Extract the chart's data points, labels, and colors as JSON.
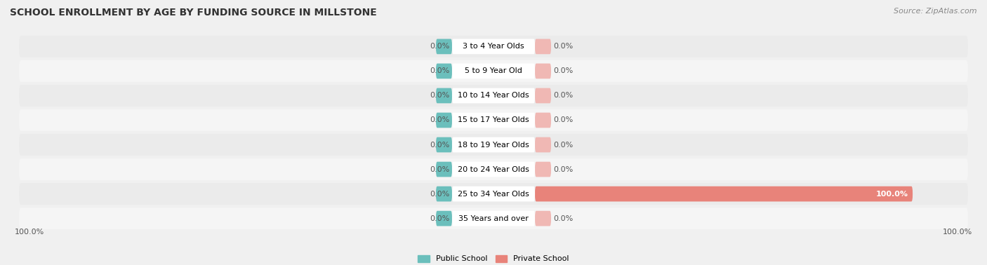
{
  "title": "SCHOOL ENROLLMENT BY AGE BY FUNDING SOURCE IN MILLSTONE",
  "source": "Source: ZipAtlas.com",
  "categories": [
    "3 to 4 Year Olds",
    "5 to 9 Year Old",
    "10 to 14 Year Olds",
    "15 to 17 Year Olds",
    "18 to 19 Year Olds",
    "20 to 24 Year Olds",
    "25 to 34 Year Olds",
    "35 Years and over"
  ],
  "public_values": [
    0.0,
    0.0,
    0.0,
    0.0,
    0.0,
    0.0,
    0.0,
    0.0
  ],
  "private_values": [
    0.0,
    0.0,
    0.0,
    0.0,
    0.0,
    0.0,
    100.0,
    0.0
  ],
  "public_left_labels": [
    "0.0%",
    "0.0%",
    "0.0%",
    "0.0%",
    "0.0%",
    "0.0%",
    "0.0%",
    "0.0%"
  ],
  "private_right_labels": [
    "0.0%",
    "0.0%",
    "0.0%",
    "0.0%",
    "0.0%",
    "0.0%",
    "100.0%",
    "0.0%"
  ],
  "public_color": "#6bbfbc",
  "private_color": "#e8837a",
  "private_zero_color": "#f0b8b4",
  "row_light_color": "#f2f2f2",
  "row_dark_color": "#e8e8e8",
  "bar_bg_color": "#ffffff",
  "axis_left_label": "100.0%",
  "axis_right_label": "100.0%",
  "legend_public": "Public School",
  "legend_private": "Private School",
  "title_fontsize": 10,
  "source_fontsize": 8,
  "label_fontsize": 8,
  "cat_fontsize": 8
}
